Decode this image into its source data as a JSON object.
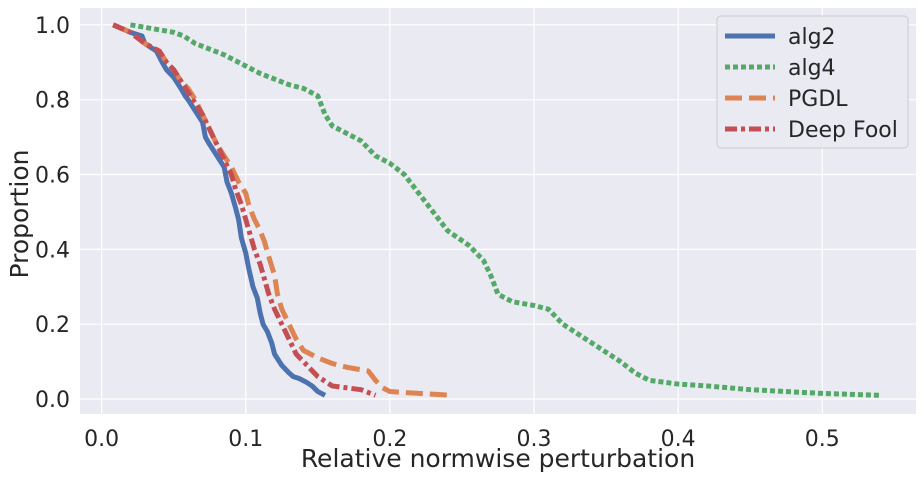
{
  "chart_data": {
    "type": "line",
    "title": "",
    "xlabel": "Relative normwise perturbation",
    "ylabel": "Proportion",
    "xlim": [
      -0.015,
      0.565
    ],
    "ylim": [
      -0.04,
      1.045
    ],
    "xticks": [
      0.0,
      0.1,
      0.2,
      0.3,
      0.4,
      0.5
    ],
    "xtick_labels": [
      "0.0",
      "0.1",
      "0.2",
      "0.3",
      "0.4",
      "0.5"
    ],
    "yticks": [
      0.0,
      0.2,
      0.4,
      0.6,
      0.8,
      1.0
    ],
    "ytick_labels": [
      "0.0",
      "0.2",
      "0.4",
      "0.6",
      "0.8",
      "1.0"
    ],
    "grid": true,
    "legend_position": "top-right",
    "colors": {
      "background": "#eaeaf2",
      "grid": "#ffffff",
      "alg2": "#4c72b0",
      "alg4": "#55a868",
      "PGDL": "#dd8452",
      "Deep Fool": "#c44e52"
    },
    "series": [
      {
        "name": "alg2",
        "style": "solid",
        "x": [
          0.008,
          0.02,
          0.028,
          0.03,
          0.038,
          0.042,
          0.045,
          0.05,
          0.055,
          0.058,
          0.06,
          0.065,
          0.07,
          0.072,
          0.075,
          0.08,
          0.085,
          0.087,
          0.09,
          0.093,
          0.095,
          0.097,
          0.1,
          0.102,
          0.105,
          0.108,
          0.11,
          0.112,
          0.115,
          0.118,
          0.12,
          0.125,
          0.13,
          0.133,
          0.137,
          0.142,
          0.146,
          0.15,
          0.155
        ],
        "y": [
          1.0,
          0.98,
          0.97,
          0.95,
          0.93,
          0.9,
          0.88,
          0.86,
          0.83,
          0.81,
          0.8,
          0.77,
          0.74,
          0.7,
          0.68,
          0.65,
          0.62,
          0.58,
          0.55,
          0.51,
          0.48,
          0.43,
          0.39,
          0.35,
          0.3,
          0.27,
          0.23,
          0.2,
          0.18,
          0.15,
          0.12,
          0.09,
          0.07,
          0.06,
          0.055,
          0.045,
          0.035,
          0.02,
          0.01
        ]
      },
      {
        "name": "alg4",
        "style": "dotted",
        "x": [
          0.02,
          0.035,
          0.05,
          0.057,
          0.065,
          0.085,
          0.1,
          0.11,
          0.13,
          0.14,
          0.15,
          0.155,
          0.16,
          0.17,
          0.18,
          0.19,
          0.2,
          0.21,
          0.22,
          0.23,
          0.24,
          0.255,
          0.265,
          0.27,
          0.275,
          0.285,
          0.3,
          0.31,
          0.32,
          0.34,
          0.36,
          0.37,
          0.38,
          0.4,
          0.42,
          0.45,
          0.5,
          0.54
        ],
        "y": [
          1.0,
          0.99,
          0.98,
          0.97,
          0.95,
          0.92,
          0.89,
          0.87,
          0.84,
          0.83,
          0.81,
          0.76,
          0.73,
          0.71,
          0.69,
          0.65,
          0.63,
          0.6,
          0.55,
          0.5,
          0.45,
          0.41,
          0.37,
          0.33,
          0.28,
          0.26,
          0.25,
          0.24,
          0.2,
          0.15,
          0.1,
          0.07,
          0.05,
          0.04,
          0.035,
          0.025,
          0.015,
          0.01
        ]
      },
      {
        "name": "PGDL",
        "style": "dashed",
        "x": [
          0.008,
          0.02,
          0.03,
          0.04,
          0.045,
          0.05,
          0.055,
          0.06,
          0.065,
          0.07,
          0.075,
          0.08,
          0.085,
          0.09,
          0.095,
          0.1,
          0.102,
          0.106,
          0.11,
          0.113,
          0.116,
          0.12,
          0.122,
          0.125,
          0.13,
          0.135,
          0.14,
          0.15,
          0.16,
          0.17,
          0.185,
          0.19,
          0.195,
          0.2,
          0.22,
          0.243
        ],
        "y": [
          1.0,
          0.98,
          0.95,
          0.93,
          0.9,
          0.88,
          0.85,
          0.83,
          0.8,
          0.76,
          0.72,
          0.68,
          0.65,
          0.62,
          0.58,
          0.55,
          0.52,
          0.48,
          0.45,
          0.42,
          0.38,
          0.33,
          0.28,
          0.24,
          0.2,
          0.16,
          0.13,
          0.11,
          0.095,
          0.085,
          0.075,
          0.05,
          0.03,
          0.02,
          0.015,
          0.01
        ]
      },
      {
        "name": "Deep Fool",
        "style": "dashdot",
        "x": [
          0.008,
          0.02,
          0.03,
          0.04,
          0.045,
          0.05,
          0.055,
          0.06,
          0.065,
          0.07,
          0.075,
          0.08,
          0.085,
          0.09,
          0.093,
          0.097,
          0.1,
          0.103,
          0.106,
          0.11,
          0.113,
          0.116,
          0.12,
          0.125,
          0.13,
          0.135,
          0.14,
          0.145,
          0.15,
          0.16,
          0.17,
          0.18,
          0.19
        ],
        "y": [
          1.0,
          0.98,
          0.95,
          0.93,
          0.9,
          0.88,
          0.85,
          0.82,
          0.79,
          0.76,
          0.72,
          0.68,
          0.64,
          0.6,
          0.56,
          0.52,
          0.48,
          0.44,
          0.4,
          0.36,
          0.32,
          0.28,
          0.24,
          0.2,
          0.16,
          0.12,
          0.1,
          0.08,
          0.06,
          0.035,
          0.03,
          0.025,
          0.01
        ]
      }
    ]
  }
}
